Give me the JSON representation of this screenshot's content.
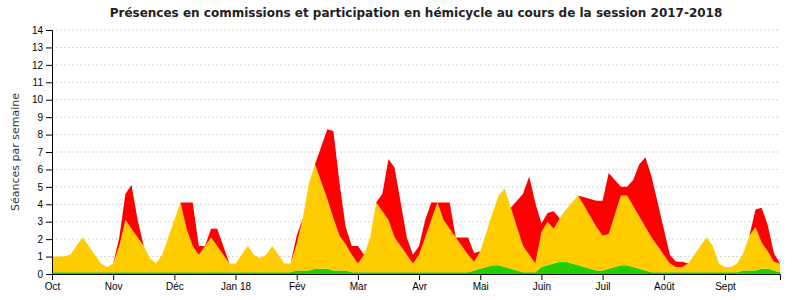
{
  "chart_data": {
    "type": "area",
    "title": "Présences en commissions et participation en hémicycle au cours de la session 2017-2018",
    "y_label": "Séances par semaine",
    "stacked": true,
    "grid": true,
    "x": [
      0,
      1,
      2,
      3,
      4,
      5,
      6,
      7,
      8,
      9,
      10,
      11,
      12,
      13,
      14,
      15,
      16,
      17,
      18,
      19,
      20,
      21,
      22,
      23,
      24,
      25,
      26,
      27,
      28,
      29,
      30,
      31,
      32,
      33,
      34,
      35,
      36,
      37,
      38,
      39,
      40,
      41,
      42,
      43,
      44,
      45,
      46,
      47,
      48,
      49,
      50,
      51,
      52,
      53,
      54,
      55,
      56,
      57,
      58,
      59,
      60,
      61,
      62,
      63,
      64,
      65,
      66,
      67,
      68,
      69,
      70,
      71,
      72,
      73,
      74,
      75,
      76,
      77,
      78,
      79,
      80,
      81,
      82,
      83,
      84,
      85,
      86,
      87,
      88,
      89,
      90,
      91,
      92,
      93,
      94,
      95,
      96,
      97,
      98,
      99,
      100,
      101,
      102,
      103,
      104,
      105,
      106,
      107,
      108,
      109,
      110,
      111,
      112,
      113,
      114,
      115,
      116,
      117,
      118,
      119
    ],
    "xlim": [
      0,
      119
    ],
    "xticks": [
      {
        "value": 0,
        "label": "Oct"
      },
      {
        "value": 10,
        "label": "Nov"
      },
      {
        "value": 20,
        "label": "Déc"
      },
      {
        "value": 30,
        "label": "Jan 18"
      },
      {
        "value": 40,
        "label": "Fév"
      },
      {
        "value": 50,
        "label": "Mar"
      },
      {
        "value": 60,
        "label": "Avr"
      },
      {
        "value": 70,
        "label": "Mai"
      },
      {
        "value": 80,
        "label": "Juin"
      },
      {
        "value": 90,
        "label": "Juil"
      },
      {
        "value": 100,
        "label": "Août"
      },
      {
        "value": 110,
        "label": "Sept"
      }
    ],
    "ylim": [
      0,
      14
    ],
    "yticks": [
      0,
      1,
      2,
      3,
      4,
      5,
      6,
      7,
      8,
      9,
      10,
      11,
      12,
      13,
      14
    ],
    "series": [
      {
        "color": "#22cc00",
        "values": [
          0.1,
          0.1,
          0.1,
          0.1,
          0.1,
          0.1,
          0.1,
          0.1,
          0.1,
          0.1,
          0.1,
          0.1,
          0.1,
          0.1,
          0.1,
          0.1,
          0.1,
          0.1,
          0.1,
          0.1,
          0.1,
          0.1,
          0.1,
          0.1,
          0.1,
          0.1,
          0.1,
          0.1,
          0.1,
          0.1,
          0.1,
          0.1,
          0.1,
          0.1,
          0.1,
          0.1,
          0.1,
          0.1,
          0.1,
          0.1,
          0.2,
          0.2,
          0.2,
          0.3,
          0.3,
          0.3,
          0.2,
          0.2,
          0.2,
          0.1,
          0.1,
          0.1,
          0.1,
          0.1,
          0.1,
          0.1,
          0.1,
          0.1,
          0.1,
          0.1,
          0.1,
          0.1,
          0.1,
          0.1,
          0.1,
          0.1,
          0.1,
          0.1,
          0.1,
          0.2,
          0.3,
          0.4,
          0.5,
          0.5,
          0.4,
          0.3,
          0.2,
          0.1,
          0.1,
          0.1,
          0.4,
          0.5,
          0.6,
          0.7,
          0.7,
          0.6,
          0.5,
          0.4,
          0.3,
          0.2,
          0.2,
          0.3,
          0.4,
          0.5,
          0.5,
          0.4,
          0.3,
          0.2,
          0.1,
          0.1,
          0.1,
          0.1,
          0.1,
          0.1,
          0.1,
          0.1,
          0.1,
          0.1,
          0.1,
          0.1,
          0.1,
          0.1,
          0.1,
          0.2,
          0.2,
          0.2,
          0.3,
          0.3,
          0.2,
          0.1
        ]
      },
      {
        "color": "#ffcc00",
        "values": [
          0.9,
          0.9,
          0.9,
          1.0,
          1.5,
          2.0,
          1.5,
          1.0,
          0.5,
          0.3,
          0.5,
          1.5,
          3.0,
          2.5,
          2.0,
          1.5,
          0.8,
          0.5,
          1.0,
          2.0,
          3.0,
          4.0,
          2.5,
          1.5,
          1.0,
          1.5,
          2.0,
          1.5,
          1.0,
          0.5,
          0.5,
          1.0,
          1.5,
          1.0,
          0.8,
          1.0,
          1.5,
          1.0,
          0.5,
          0.5,
          1.5,
          3.0,
          5.0,
          6.0,
          5.0,
          4.0,
          3.0,
          2.0,
          1.5,
          1.0,
          0.5,
          1.0,
          2.0,
          4.0,
          3.5,
          3.0,
          2.0,
          1.5,
          1.0,
          0.5,
          1.0,
          2.0,
          3.0,
          4.0,
          3.0,
          2.5,
          2.0,
          1.5,
          1.0,
          0.5,
          1.0,
          2.0,
          3.0,
          4.0,
          4.5,
          3.5,
          2.5,
          1.5,
          1.0,
          0.5,
          2.0,
          2.5,
          2.0,
          2.5,
          3.0,
          3.5,
          4.0,
          3.5,
          3.0,
          2.5,
          2.0,
          2.0,
          3.0,
          4.0,
          4.0,
          3.5,
          3.0,
          2.5,
          2.0,
          1.5,
          1.0,
          0.5,
          0.3,
          0.3,
          0.5,
          1.0,
          1.5,
          2.0,
          1.5,
          0.5,
          0.3,
          0.3,
          0.5,
          1.0,
          2.0,
          2.5,
          1.5,
          1.0,
          0.5,
          0.5
        ]
      },
      {
        "color": "#ff0000",
        "values": [
          0.0,
          0.0,
          0.0,
          0.0,
          0.0,
          0.0,
          0.0,
          0.0,
          0.0,
          0.0,
          0.0,
          0.5,
          1.5,
          2.5,
          1.0,
          0.0,
          0.0,
          0.0,
          0.0,
          0.0,
          0.0,
          0.0,
          1.5,
          2.5,
          0.5,
          0.0,
          0.5,
          1.0,
          0.5,
          0.0,
          0.0,
          0.0,
          0.0,
          0.0,
          0.0,
          0.0,
          0.0,
          0.0,
          0.0,
          0.0,
          0.5,
          0.0,
          0.0,
          0.0,
          2.0,
          4.0,
          5.0,
          3.0,
          1.0,
          0.5,
          1.0,
          0.0,
          0.0,
          0.0,
          1.0,
          3.5,
          4.0,
          2.5,
          1.0,
          0.5,
          0.5,
          1.0,
          1.0,
          0.0,
          1.0,
          1.5,
          0.0,
          0.5,
          1.0,
          0.5,
          0.0,
          0.0,
          0.0,
          0.0,
          0.0,
          0.0,
          1.5,
          3.0,
          4.5,
          3.5,
          0.5,
          0.5,
          1.0,
          0.0,
          0.0,
          0.0,
          0.0,
          0.5,
          1.0,
          1.5,
          2.0,
          3.5,
          2.0,
          0.5,
          0.5,
          1.5,
          3.0,
          4.0,
          3.5,
          2.5,
          1.5,
          0.5,
          0.3,
          0.3,
          0.0,
          0.0,
          0.0,
          0.0,
          0.0,
          0.0,
          0.0,
          0.0,
          0.0,
          0.0,
          0.0,
          1.0,
          2.0,
          1.5,
          0.5,
          0.0
        ]
      }
    ]
  }
}
